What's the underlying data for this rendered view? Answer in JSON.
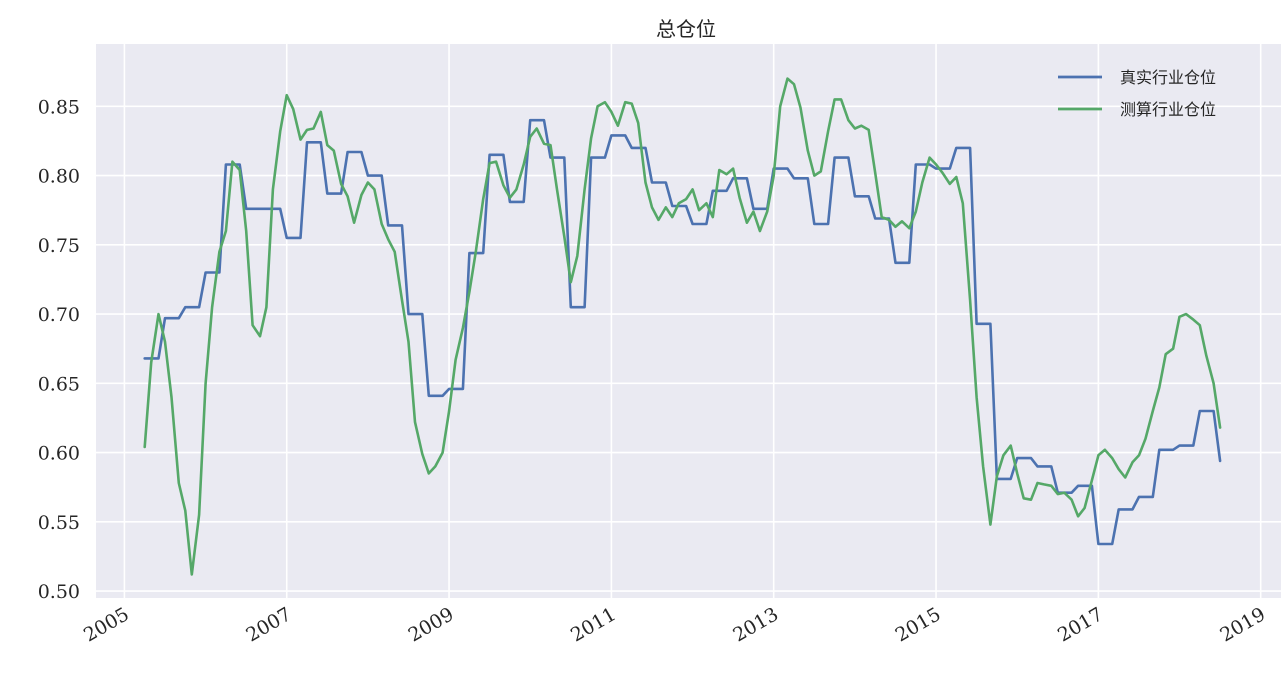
{
  "chart_data": {
    "type": "line",
    "title": "总仓位",
    "xlabel": "",
    "ylabel": "",
    "xlim": [
      2004.65,
      2019.25
    ],
    "ylim": [
      0.495,
      0.895
    ],
    "x_ticks": [
      2005,
      2007,
      2009,
      2011,
      2013,
      2015,
      2017,
      2019
    ],
    "x_tick_labels": [
      "2005",
      "2007",
      "2009",
      "2011",
      "2013",
      "2015",
      "2017",
      "2019"
    ],
    "y_ticks": [
      0.5,
      0.55,
      0.6,
      0.65,
      0.7,
      0.75,
      0.8,
      0.85
    ],
    "y_tick_labels": [
      "0.50",
      "0.55",
      "0.60",
      "0.65",
      "0.70",
      "0.75",
      "0.80",
      "0.85"
    ],
    "grid": true,
    "legend_position": "top-right",
    "colors": {
      "background": "#eaeaf2",
      "grid": "#ffffff",
      "series1": "#4c72b0",
      "series2": "#55a868"
    },
    "series": [
      {
        "name": "真实行业仓位",
        "color": "#4c72b0",
        "points": [
          [
            2005.25,
            0.668
          ],
          [
            2005.42,
            0.668
          ],
          [
            2005.5,
            0.697
          ],
          [
            2005.67,
            0.697
          ],
          [
            2005.75,
            0.705
          ],
          [
            2005.92,
            0.705
          ],
          [
            2006.0,
            0.73
          ],
          [
            2006.17,
            0.73
          ],
          [
            2006.25,
            0.808
          ],
          [
            2006.42,
            0.808
          ],
          [
            2006.5,
            0.776
          ],
          [
            2006.92,
            0.776
          ],
          [
            2007.0,
            0.755
          ],
          [
            2007.17,
            0.755
          ],
          [
            2007.25,
            0.824
          ],
          [
            2007.42,
            0.824
          ],
          [
            2007.5,
            0.787
          ],
          [
            2007.67,
            0.787
          ],
          [
            2007.75,
            0.817
          ],
          [
            2007.92,
            0.817
          ],
          [
            2008.0,
            0.8
          ],
          [
            2008.17,
            0.8
          ],
          [
            2008.25,
            0.764
          ],
          [
            2008.42,
            0.764
          ],
          [
            2008.5,
            0.7
          ],
          [
            2008.67,
            0.7
          ],
          [
            2008.75,
            0.641
          ],
          [
            2008.92,
            0.641
          ],
          [
            2009.0,
            0.646
          ],
          [
            2009.17,
            0.646
          ],
          [
            2009.25,
            0.744
          ],
          [
            2009.42,
            0.744
          ],
          [
            2009.5,
            0.815
          ],
          [
            2009.67,
            0.815
          ],
          [
            2009.75,
            0.781
          ],
          [
            2009.92,
            0.781
          ],
          [
            2010.0,
            0.84
          ],
          [
            2010.17,
            0.84
          ],
          [
            2010.25,
            0.813
          ],
          [
            2010.42,
            0.813
          ],
          [
            2010.5,
            0.705
          ],
          [
            2010.67,
            0.705
          ],
          [
            2010.75,
            0.813
          ],
          [
            2010.92,
            0.813
          ],
          [
            2011.0,
            0.829
          ],
          [
            2011.17,
            0.829
          ],
          [
            2011.25,
            0.82
          ],
          [
            2011.42,
            0.82
          ],
          [
            2011.5,
            0.795
          ],
          [
            2011.67,
            0.795
          ],
          [
            2011.75,
            0.778
          ],
          [
            2011.92,
            0.778
          ],
          [
            2012.0,
            0.765
          ],
          [
            2012.17,
            0.765
          ],
          [
            2012.25,
            0.789
          ],
          [
            2012.42,
            0.789
          ],
          [
            2012.5,
            0.798
          ],
          [
            2012.67,
            0.798
          ],
          [
            2012.75,
            0.776
          ],
          [
            2012.92,
            0.776
          ],
          [
            2013.0,
            0.805
          ],
          [
            2013.17,
            0.805
          ],
          [
            2013.25,
            0.798
          ],
          [
            2013.42,
            0.798
          ],
          [
            2013.5,
            0.765
          ],
          [
            2013.67,
            0.765
          ],
          [
            2013.75,
            0.813
          ],
          [
            2013.92,
            0.813
          ],
          [
            2014.0,
            0.785
          ],
          [
            2014.17,
            0.785
          ],
          [
            2014.25,
            0.769
          ],
          [
            2014.42,
            0.769
          ],
          [
            2014.5,
            0.737
          ],
          [
            2014.67,
            0.737
          ],
          [
            2014.75,
            0.808
          ],
          [
            2014.92,
            0.808
          ],
          [
            2015.0,
            0.805
          ],
          [
            2015.17,
            0.805
          ],
          [
            2015.25,
            0.82
          ],
          [
            2015.42,
            0.82
          ],
          [
            2015.5,
            0.693
          ],
          [
            2015.67,
            0.693
          ],
          [
            2015.75,
            0.581
          ],
          [
            2015.92,
            0.581
          ],
          [
            2016.0,
            0.596
          ],
          [
            2016.17,
            0.596
          ],
          [
            2016.25,
            0.59
          ],
          [
            2016.42,
            0.59
          ],
          [
            2016.5,
            0.571
          ],
          [
            2016.67,
            0.571
          ],
          [
            2016.75,
            0.576
          ],
          [
            2016.92,
            0.576
          ],
          [
            2017.0,
            0.534
          ],
          [
            2017.17,
            0.534
          ],
          [
            2017.25,
            0.559
          ],
          [
            2017.42,
            0.559
          ],
          [
            2017.5,
            0.568
          ],
          [
            2017.67,
            0.568
          ],
          [
            2017.75,
            0.602
          ],
          [
            2017.92,
            0.602
          ],
          [
            2018.0,
            0.605
          ],
          [
            2018.17,
            0.605
          ],
          [
            2018.25,
            0.63
          ],
          [
            2018.42,
            0.63
          ],
          [
            2018.5,
            0.594
          ]
        ]
      },
      {
        "name": "测算行业仓位",
        "color": "#55a868",
        "points": [
          [
            2005.25,
            0.604
          ],
          [
            2005.33,
            0.665
          ],
          [
            2005.42,
            0.7
          ],
          [
            2005.5,
            0.68
          ],
          [
            2005.58,
            0.64
          ],
          [
            2005.67,
            0.578
          ],
          [
            2005.75,
            0.558
          ],
          [
            2005.83,
            0.512
          ],
          [
            2005.92,
            0.555
          ],
          [
            2006.0,
            0.65
          ],
          [
            2006.08,
            0.705
          ],
          [
            2006.17,
            0.745
          ],
          [
            2006.25,
            0.76
          ],
          [
            2006.33,
            0.81
          ],
          [
            2006.42,
            0.804
          ],
          [
            2006.5,
            0.76
          ],
          [
            2006.58,
            0.692
          ],
          [
            2006.67,
            0.684
          ],
          [
            2006.75,
            0.705
          ],
          [
            2006.83,
            0.79
          ],
          [
            2006.92,
            0.832
          ],
          [
            2007.0,
            0.858
          ],
          [
            2007.08,
            0.848
          ],
          [
            2007.17,
            0.826
          ],
          [
            2007.25,
            0.833
          ],
          [
            2007.33,
            0.834
          ],
          [
            2007.42,
            0.846
          ],
          [
            2007.5,
            0.822
          ],
          [
            2007.58,
            0.818
          ],
          [
            2007.67,
            0.794
          ],
          [
            2007.75,
            0.785
          ],
          [
            2007.83,
            0.766
          ],
          [
            2007.92,
            0.786
          ],
          [
            2008.0,
            0.795
          ],
          [
            2008.08,
            0.79
          ],
          [
            2008.17,
            0.765
          ],
          [
            2008.25,
            0.754
          ],
          [
            2008.33,
            0.745
          ],
          [
            2008.42,
            0.71
          ],
          [
            2008.5,
            0.68
          ],
          [
            2008.58,
            0.622
          ],
          [
            2008.67,
            0.599
          ],
          [
            2008.75,
            0.585
          ],
          [
            2008.83,
            0.59
          ],
          [
            2008.92,
            0.6
          ],
          [
            2009.0,
            0.63
          ],
          [
            2009.08,
            0.667
          ],
          [
            2009.17,
            0.69
          ],
          [
            2009.25,
            0.716
          ],
          [
            2009.33,
            0.745
          ],
          [
            2009.42,
            0.783
          ],
          [
            2009.5,
            0.809
          ],
          [
            2009.58,
            0.81
          ],
          [
            2009.67,
            0.793
          ],
          [
            2009.75,
            0.784
          ],
          [
            2009.83,
            0.79
          ],
          [
            2009.92,
            0.808
          ],
          [
            2010.0,
            0.828
          ],
          [
            2010.08,
            0.834
          ],
          [
            2010.17,
            0.823
          ],
          [
            2010.25,
            0.822
          ],
          [
            2010.33,
            0.79
          ],
          [
            2010.42,
            0.756
          ],
          [
            2010.5,
            0.723
          ],
          [
            2010.58,
            0.742
          ],
          [
            2010.67,
            0.79
          ],
          [
            2010.75,
            0.827
          ],
          [
            2010.83,
            0.85
          ],
          [
            2010.92,
            0.853
          ],
          [
            2011.0,
            0.846
          ],
          [
            2011.08,
            0.836
          ],
          [
            2011.17,
            0.853
          ],
          [
            2011.25,
            0.852
          ],
          [
            2011.33,
            0.838
          ],
          [
            2011.42,
            0.795
          ],
          [
            2011.5,
            0.777
          ],
          [
            2011.58,
            0.768
          ],
          [
            2011.67,
            0.777
          ],
          [
            2011.75,
            0.77
          ],
          [
            2011.83,
            0.78
          ],
          [
            2011.92,
            0.783
          ],
          [
            2012.0,
            0.79
          ],
          [
            2012.08,
            0.775
          ],
          [
            2012.17,
            0.78
          ],
          [
            2012.25,
            0.77
          ],
          [
            2012.33,
            0.804
          ],
          [
            2012.42,
            0.801
          ],
          [
            2012.5,
            0.805
          ],
          [
            2012.58,
            0.784
          ],
          [
            2012.67,
            0.766
          ],
          [
            2012.75,
            0.774
          ],
          [
            2012.83,
            0.76
          ],
          [
            2012.92,
            0.774
          ],
          [
            2013.0,
            0.8
          ],
          [
            2013.08,
            0.85
          ],
          [
            2013.17,
            0.87
          ],
          [
            2013.25,
            0.866
          ],
          [
            2013.33,
            0.849
          ],
          [
            2013.42,
            0.818
          ],
          [
            2013.5,
            0.8
          ],
          [
            2013.58,
            0.803
          ],
          [
            2013.67,
            0.832
          ],
          [
            2013.75,
            0.855
          ],
          [
            2013.83,
            0.855
          ],
          [
            2013.92,
            0.84
          ],
          [
            2014.0,
            0.834
          ],
          [
            2014.08,
            0.836
          ],
          [
            2014.17,
            0.833
          ],
          [
            2014.25,
            0.802
          ],
          [
            2014.33,
            0.77
          ],
          [
            2014.42,
            0.768
          ],
          [
            2014.5,
            0.763
          ],
          [
            2014.58,
            0.767
          ],
          [
            2014.67,
            0.762
          ],
          [
            2014.75,
            0.774
          ],
          [
            2014.83,
            0.795
          ],
          [
            2014.92,
            0.813
          ],
          [
            2015.0,
            0.808
          ],
          [
            2015.08,
            0.802
          ],
          [
            2015.17,
            0.794
          ],
          [
            2015.25,
            0.799
          ],
          [
            2015.33,
            0.78
          ],
          [
            2015.42,
            0.71
          ],
          [
            2015.5,
            0.64
          ],
          [
            2015.58,
            0.59
          ],
          [
            2015.67,
            0.548
          ],
          [
            2015.75,
            0.583
          ],
          [
            2015.83,
            0.598
          ],
          [
            2015.92,
            0.605
          ],
          [
            2016.0,
            0.585
          ],
          [
            2016.08,
            0.567
          ],
          [
            2016.17,
            0.566
          ],
          [
            2016.25,
            0.578
          ],
          [
            2016.33,
            0.577
          ],
          [
            2016.42,
            0.576
          ],
          [
            2016.5,
            0.57
          ],
          [
            2016.58,
            0.571
          ],
          [
            2016.67,
            0.566
          ],
          [
            2016.75,
            0.554
          ],
          [
            2016.83,
            0.56
          ],
          [
            2016.92,
            0.58
          ],
          [
            2017.0,
            0.598
          ],
          [
            2017.08,
            0.602
          ],
          [
            2017.17,
            0.596
          ],
          [
            2017.25,
            0.588
          ],
          [
            2017.33,
            0.582
          ],
          [
            2017.42,
            0.593
          ],
          [
            2017.5,
            0.598
          ],
          [
            2017.58,
            0.61
          ],
          [
            2017.67,
            0.63
          ],
          [
            2017.75,
            0.647
          ],
          [
            2017.83,
            0.671
          ],
          [
            2017.92,
            0.675
          ],
          [
            2018.0,
            0.698
          ],
          [
            2018.08,
            0.7
          ],
          [
            2018.17,
            0.696
          ],
          [
            2018.25,
            0.692
          ],
          [
            2018.33,
            0.67
          ],
          [
            2018.42,
            0.65
          ],
          [
            2018.5,
            0.618
          ]
        ]
      }
    ]
  }
}
